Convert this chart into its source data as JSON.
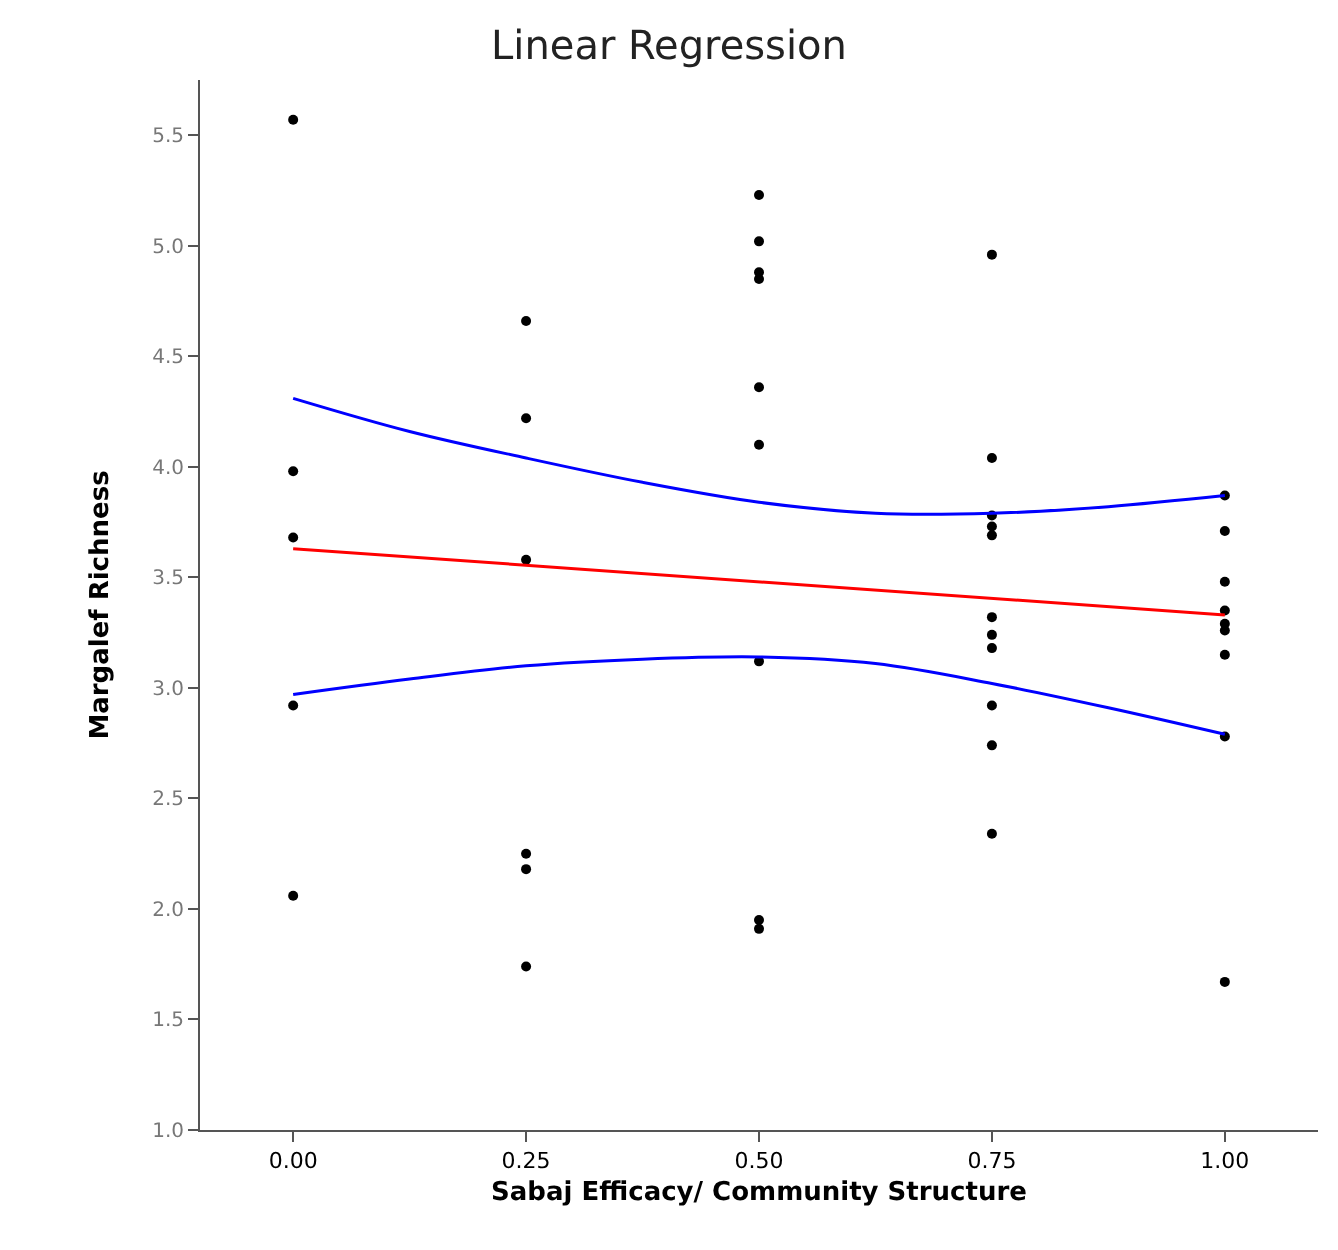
{
  "chart_data": {
    "type": "scatter",
    "title": "Linear Regression",
    "xlabel": "Sabaj Efficacy/ Community Structure",
    "ylabel": "Margalef Richness",
    "xlim": [
      -0.1,
      1.1
    ],
    "xticks": [
      {
        "value": 0,
        "label": "0.00"
      },
      0.25,
      {
        "value": 0.5,
        "label": "0.50"
      },
      0.75,
      {
        "value": 1,
        "label": "1.00"
      }
    ],
    "ylim": [
      1.0,
      5.75
    ],
    "yticks": [
      {
        "value": 1,
        "label": "1.0"
      },
      1.5,
      {
        "value": 2,
        "label": "2.0"
      },
      2.5,
      {
        "value": 3,
        "label": "3.0"
      },
      3.5,
      {
        "value": 4,
        "label": "4.0"
      },
      4.5,
      {
        "value": 5,
        "label": "5.0"
      },
      5.5
    ],
    "marker": "circle",
    "series": [
      {
        "color": "#000000",
        "x": [
          0,
          0,
          0,
          0,
          0,
          0.25,
          0.25,
          0.25,
          0.25,
          0.25,
          0.25,
          0.5,
          0.5,
          0.5,
          0.5,
          0.5,
          0.5,
          0.5,
          0.5,
          0.5,
          0.75,
          0.75,
          0.75,
          0.75,
          0.75,
          0.75,
          0.75,
          0.75,
          0.75,
          0.75,
          0.75,
          1,
          1,
          1,
          1,
          1,
          1,
          1,
          1,
          1
        ],
        "values": [
          5.57,
          3.98,
          3.68,
          2.92,
          2.06,
          4.66,
          4.22,
          3.58,
          2.25,
          2.18,
          1.74,
          5.23,
          5.02,
          4.88,
          4.85,
          4.36,
          4.1,
          3.12,
          1.95,
          1.91,
          4.96,
          4.04,
          3.78,
          3.73,
          3.69,
          3.32,
          3.24,
          3.18,
          2.92,
          2.74,
          2.34,
          3.87,
          3.71,
          3.48,
          3.35,
          3.29,
          3.26,
          3.15,
          2.78,
          1.67
        ]
      },
      {
        "type": "line",
        "color": "#ff0000",
        "marker": "none",
        "x": [
          0,
          1
        ],
        "values": [
          3.63,
          3.33
        ]
      },
      {
        "type": "line",
        "color": "#0000ff",
        "marker": "none",
        "x": [
          0,
          0.125,
          0.25,
          0.375,
          0.5,
          0.625,
          0.75,
          0.875,
          1
        ],
        "values": [
          4.31,
          4.16,
          4.04,
          3.93,
          3.84,
          3.79,
          3.79,
          3.82,
          3.87
        ]
      },
      {
        "type": "line",
        "color": "#0000ff",
        "marker": "none",
        "x": [
          0,
          0.125,
          0.25,
          0.375,
          0.5,
          0.625,
          0.75,
          0.875,
          1
        ],
        "values": [
          2.97,
          3.04,
          3.1,
          3.13,
          3.14,
          3.11,
          3.02,
          2.91,
          2.79
        ]
      }
    ]
  }
}
